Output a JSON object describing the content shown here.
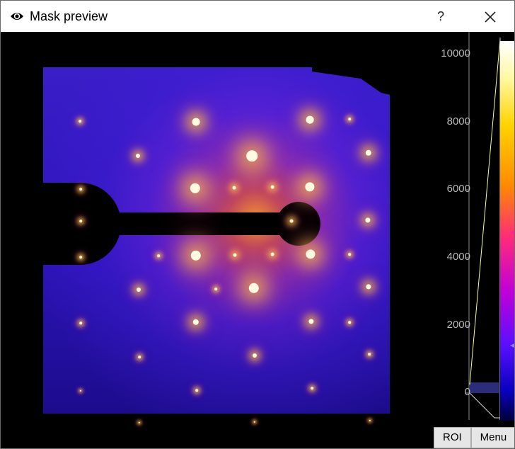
{
  "window": {
    "title": "Mask preview",
    "help_label": "?",
    "title_icon": "eye-icon",
    "close_icon": "close-icon"
  },
  "colorbar": {
    "ticks": [
      "10000",
      "8000",
      "6000",
      "4000",
      "2000",
      "0"
    ],
    "colormap": "fire"
  },
  "buttons": {
    "roi_label": "ROI",
    "menu_label": "Menu"
  },
  "colors": {
    "background": "#000000",
    "titlebar": "#ffffff",
    "button_bg": "#e6e6e6"
  }
}
